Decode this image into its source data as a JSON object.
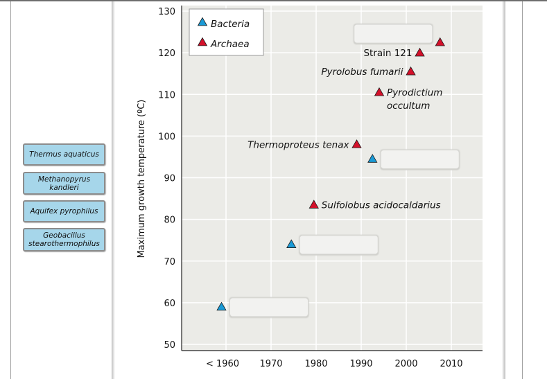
{
  "left_panel": {
    "species_buttons": [
      {
        "label": "Thermus aquaticus"
      },
      {
        "label": "Methanopyrus kandleri",
        "lines": [
          "Methanopyrus",
          "kandleri"
        ]
      },
      {
        "label": "Aquifex pyrophilus"
      },
      {
        "label": "Geobacillus stearothermophilus",
        "lines": [
          "Geobacillus",
          "stearothermophilus"
        ]
      }
    ]
  },
  "colors": {
    "bacteria": "#1a9ad6",
    "archaea": "#d4102a",
    "plot_background": "#ebebe7",
    "gridline": "#ffffff",
    "button_fill": "#a6d6ea"
  },
  "chart_data": {
    "type": "scatter",
    "title": "",
    "xlabel": "",
    "ylabel": "Maximum growth temperature (ºC)",
    "x_ticks": [
      {
        "value": 1960,
        "label": "< 1960"
      },
      {
        "value": 1970,
        "label": "1970"
      },
      {
        "value": 1980,
        "label": "1980"
      },
      {
        "value": 1990,
        "label": "1990"
      },
      {
        "value": 2000,
        "label": "2000"
      },
      {
        "value": 2010,
        "label": "2010"
      }
    ],
    "y_ticks": [
      50,
      60,
      70,
      80,
      90,
      100,
      110,
      120,
      130
    ],
    "xlim": [
      1951,
      2017
    ],
    "ylim": [
      48.5,
      131
    ],
    "grid": true,
    "legend": {
      "placement": "top-left",
      "entries": [
        {
          "name": "Bacteria",
          "color_key": "bacteria"
        },
        {
          "name": "Archaea",
          "color_key": "archaea"
        }
      ]
    },
    "series": [
      {
        "name": "Bacteria",
        "points": [
          {
            "x": 1959,
            "y": 59,
            "label": "",
            "label_slot": "blank"
          },
          {
            "x": 1974.5,
            "y": 74,
            "label": "",
            "label_slot": "blank"
          },
          {
            "x": 1992.5,
            "y": 94.5,
            "label": "",
            "label_slot": "blank"
          }
        ]
      },
      {
        "name": "Archaea",
        "points": [
          {
            "x": 1979.5,
            "y": 83.5,
            "label": "Sulfolobus acidocaldarius",
            "italic": true,
            "side": "right"
          },
          {
            "x": 1989,
            "y": 98,
            "label": "Thermoproteus tenax",
            "italic": true,
            "side": "left"
          },
          {
            "x": 1994,
            "y": 110.5,
            "label": "Pyrodictium occultum",
            "italic": true,
            "side": "right",
            "lines": [
              "Pyrodictium",
              "occultum"
            ]
          },
          {
            "x": 2001,
            "y": 115.5,
            "label": "Pyrolobus fumarii",
            "italic": true,
            "side": "left"
          },
          {
            "x": 2003,
            "y": 120,
            "label": "Strain 121",
            "italic": false,
            "side": "left"
          },
          {
            "x": 2007.5,
            "y": 122.5,
            "label": "",
            "label_slot": "blank"
          }
        ]
      }
    ]
  }
}
